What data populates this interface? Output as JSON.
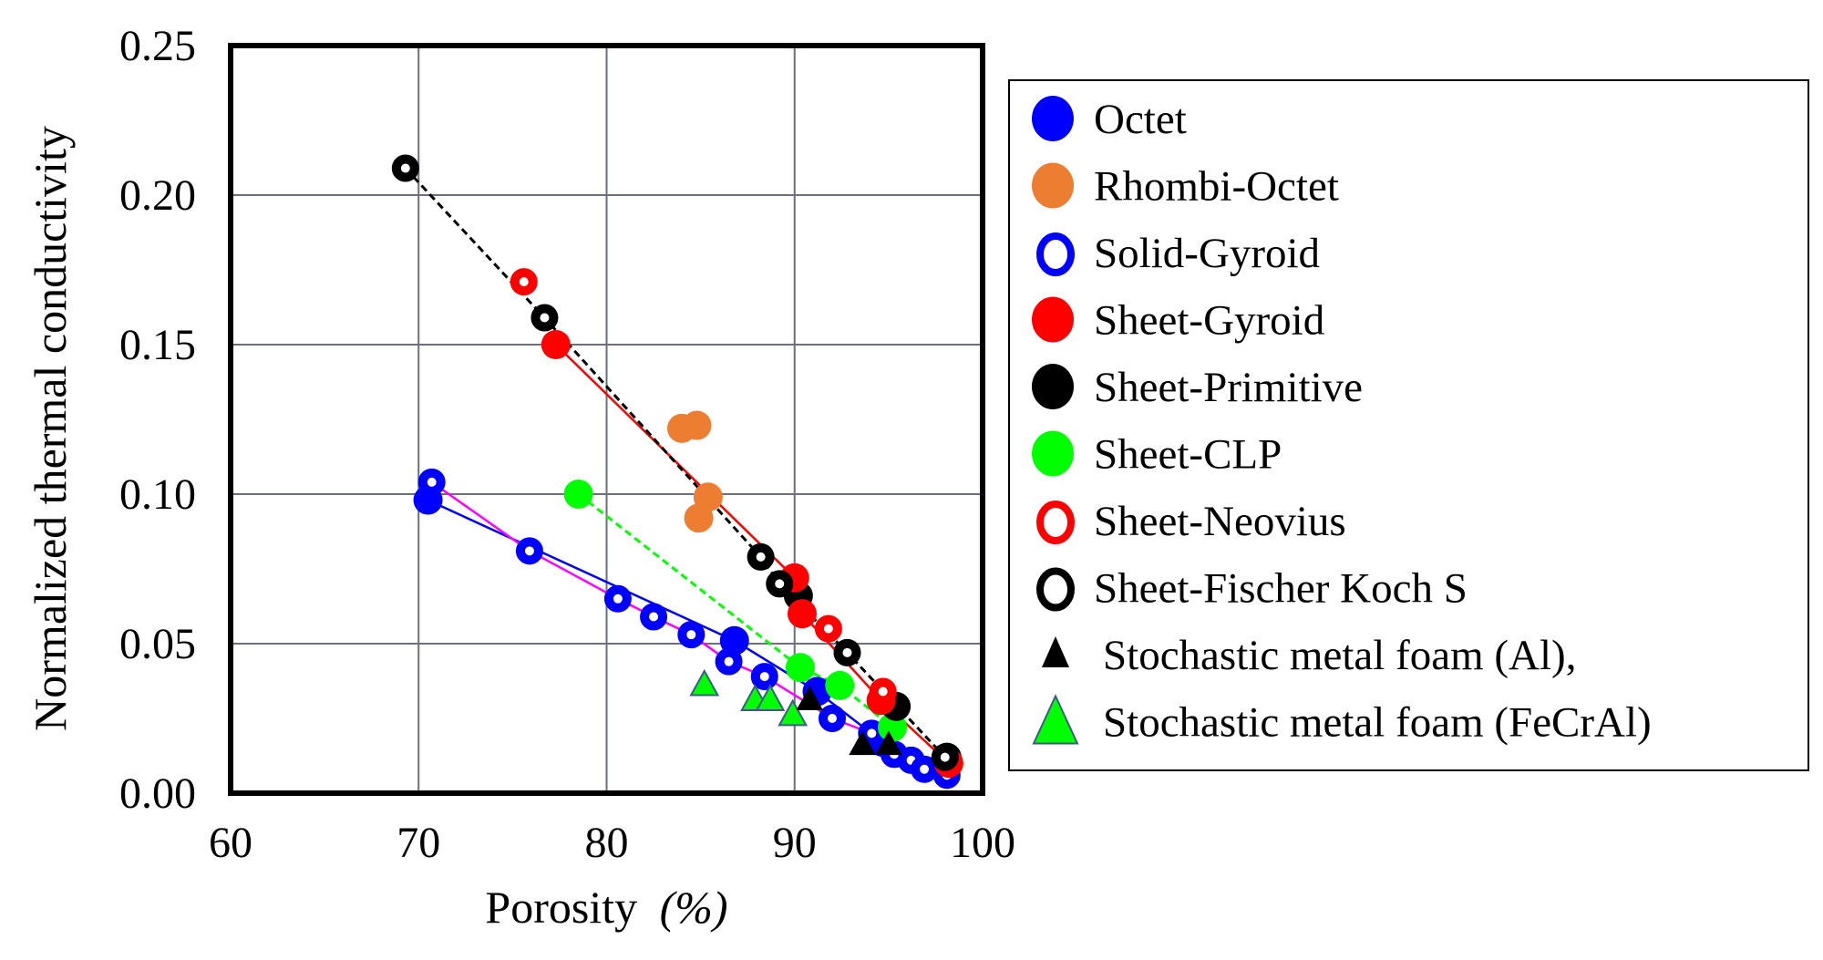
{
  "chart_data": {
    "type": "scatter",
    "title": "",
    "xlabel": "Porosity",
    "xlabel_unit": "(%)",
    "ylabel": "Normalized thermal conductivity",
    "xlim": [
      60,
      100
    ],
    "ylim": [
      0,
      0.25
    ],
    "xticks": [
      60,
      70,
      80,
      90,
      100
    ],
    "xtick_labels": [
      "60",
      "70",
      "80",
      "90",
      "100"
    ],
    "yticks": [
      0,
      0.05,
      0.1,
      0.15,
      0.2,
      0.25
    ],
    "ytick_labels": [
      "0.00",
      "0.05",
      "0.10",
      "0.15",
      "0.20",
      "0.25"
    ],
    "grid": true,
    "legend_position": "right-outside",
    "series": [
      {
        "name": "Octet",
        "marker": "circle-filled",
        "color": "#0000ff",
        "line": {
          "style": "solid",
          "color": "#0000ff"
        },
        "x": [
          70.5,
          86.8,
          91.2,
          94.7
        ],
        "y": [
          0.098,
          0.051,
          0.034,
          0.017
        ]
      },
      {
        "name": "Rhombi-Octet",
        "marker": "circle-filled",
        "color": "#ed7d31",
        "line": null,
        "x": [
          84.0,
          84.8,
          85.4,
          84.9
        ],
        "y": [
          0.122,
          0.123,
          0.099,
          0.092
        ]
      },
      {
        "name": "Solid-Gyroid",
        "marker": "circle-open",
        "color": "#0000ff",
        "line": {
          "style": "solid",
          "color": "#ff00ff"
        },
        "x": [
          70.7,
          75.9,
          80.6,
          82.5,
          84.5,
          86.5,
          88.4,
          92.0,
          94.1,
          95.3,
          96.2,
          96.9,
          98.1
        ],
        "y": [
          0.104,
          0.081,
          0.065,
          0.059,
          0.053,
          0.044,
          0.039,
          0.025,
          0.02,
          0.013,
          0.011,
          0.008,
          0.006
        ]
      },
      {
        "name": "Sheet-Gyroid",
        "marker": "circle-filled",
        "color": "#ff0000",
        "line": {
          "style": "solid",
          "color": "#ff0000"
        },
        "x": [
          77.3,
          90.0,
          90.4,
          94.6,
          98.2
        ],
        "y": [
          0.15,
          0.072,
          0.06,
          0.031,
          0.01
        ]
      },
      {
        "name": "Sheet-Primitive",
        "marker": "circle-filled",
        "color": "#000000",
        "line": null,
        "x": [
          90.2,
          95.4,
          98.1
        ],
        "y": [
          0.066,
          0.029,
          0.012
        ]
      },
      {
        "name": "Sheet-CLP",
        "marker": "circle-filled",
        "color": "#00ff00",
        "line": {
          "style": "dashed",
          "color": "#00ff00"
        },
        "x": [
          78.5,
          90.3,
          92.4,
          95.2
        ],
        "y": [
          0.1,
          0.042,
          0.036,
          0.022
        ]
      },
      {
        "name": "Sheet-Neovius",
        "marker": "circle-open",
        "color": "#ff0000",
        "line": null,
        "x": [
          75.6,
          91.8,
          94.7
        ],
        "y": [
          0.171,
          0.055,
          0.034
        ]
      },
      {
        "name": "Sheet-Fischer Koch S",
        "marker": "circle-open",
        "color": "#000000",
        "line": {
          "style": "dashed",
          "color": "#000000"
        },
        "x": [
          69.3,
          76.7,
          88.2,
          89.2,
          92.8,
          98.0
        ],
        "y": [
          0.209,
          0.159,
          0.079,
          0.07,
          0.047,
          0.012
        ]
      },
      {
        "name": "Stochastic metal foam (Al),",
        "marker": "triangle-filled",
        "color": "#000000",
        "line": null,
        "x": [
          90.8,
          93.6,
          95.0
        ],
        "y": [
          0.031,
          0.016,
          0.016
        ]
      },
      {
        "name": "Stochastic metal foam (FeCrAl)",
        "marker": "triangle-filled-outlined",
        "color": "#00ff00",
        "line": null,
        "x": [
          85.2,
          87.9,
          88.7,
          89.9
        ],
        "y": [
          0.036,
          0.031,
          0.031,
          0.026
        ]
      }
    ]
  }
}
